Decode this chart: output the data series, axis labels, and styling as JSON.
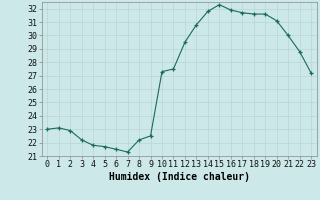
{
  "x": [
    0,
    1,
    2,
    3,
    4,
    5,
    6,
    7,
    8,
    9,
    10,
    11,
    12,
    13,
    14,
    15,
    16,
    17,
    18,
    19,
    20,
    21,
    22,
    23
  ],
  "y": [
    23.0,
    23.1,
    22.9,
    22.2,
    21.8,
    21.7,
    21.5,
    21.3,
    22.2,
    22.5,
    27.3,
    27.5,
    29.5,
    30.8,
    31.8,
    32.3,
    31.9,
    31.7,
    31.6,
    31.6,
    31.1,
    30.0,
    28.8,
    27.2
  ],
  "xlabel": "Humidex (Indice chaleur)",
  "bg_color": "#cce8e8",
  "grid_color": "#b8d4d4",
  "line_color": "#1a6b5a",
  "marker_color": "#1a6b5a",
  "ylim": [
    21,
    32.5
  ],
  "xlim": [
    -0.5,
    23.5
  ],
  "yticks": [
    21,
    22,
    23,
    24,
    25,
    26,
    27,
    28,
    29,
    30,
    31,
    32
  ],
  "xticks": [
    0,
    1,
    2,
    3,
    4,
    5,
    6,
    7,
    8,
    9,
    10,
    11,
    12,
    13,
    14,
    15,
    16,
    17,
    18,
    19,
    20,
    21,
    22,
    23
  ],
  "xlabel_fontsize": 7,
  "tick_fontsize": 6,
  "spine_color": "#888888",
  "tick_color": "#555555"
}
